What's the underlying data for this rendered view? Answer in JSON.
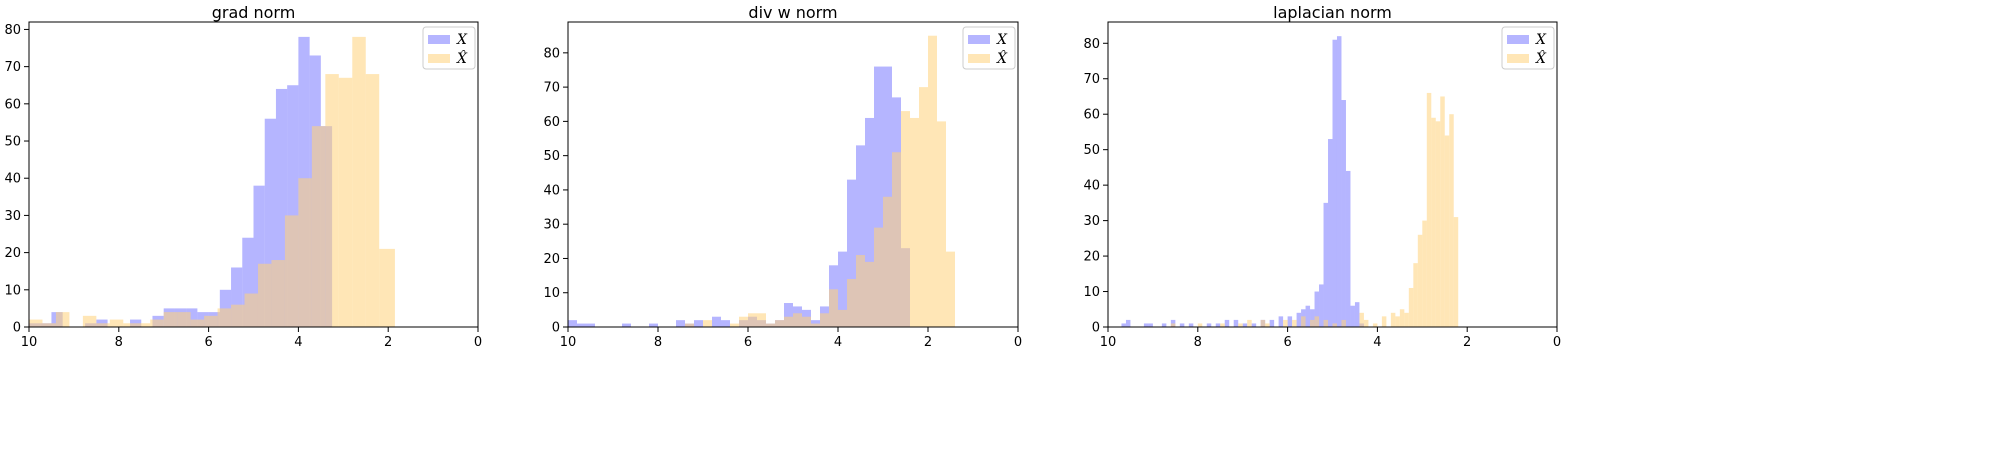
{
  "chart_data": [
    {
      "type": "histogram",
      "title": "grad norm",
      "xlim": [
        10,
        0
      ],
      "ylim": [
        0,
        82
      ],
      "xticks": [
        10,
        8,
        6,
        4,
        2,
        0
      ],
      "yticks": [
        0,
        10,
        20,
        30,
        40,
        50,
        60,
        70,
        80
      ],
      "legend": {
        "position": "top-right",
        "entries": [
          "X",
          "X̂"
        ]
      },
      "grid": false,
      "series": [
        {
          "name": "X",
          "color": "#6b6bff",
          "bins": [
            [
              10.0,
              9.75,
              1
            ],
            [
              9.75,
              9.5,
              1
            ],
            [
              9.5,
              9.25,
              4
            ],
            [
              8.75,
              8.5,
              1
            ],
            [
              8.5,
              8.25,
              2
            ],
            [
              7.75,
              7.5,
              2
            ],
            [
              7.25,
              7.0,
              3
            ],
            [
              7.0,
              6.75,
              5
            ],
            [
              6.75,
              6.5,
              5
            ],
            [
              6.5,
              6.25,
              5
            ],
            [
              6.25,
              6.0,
              4
            ],
            [
              6.0,
              5.75,
              4
            ],
            [
              5.75,
              5.5,
              10
            ],
            [
              5.5,
              5.25,
              16
            ],
            [
              5.25,
              5.0,
              24
            ],
            [
              5.0,
              4.75,
              38
            ],
            [
              4.75,
              4.5,
              56
            ],
            [
              4.5,
              4.25,
              64
            ],
            [
              4.25,
              4.0,
              65
            ],
            [
              4.0,
              3.75,
              78
            ],
            [
              3.75,
              3.5,
              73
            ],
            [
              3.5,
              3.25,
              54
            ]
          ]
        },
        {
          "name": "X̂",
          "color": "#ffd27a",
          "bins": [
            [
              10.0,
              9.7,
              2
            ],
            [
              9.7,
              9.4,
              1
            ],
            [
              9.4,
              9.1,
              4
            ],
            [
              8.8,
              8.5,
              3
            ],
            [
              8.5,
              8.2,
              1
            ],
            [
              8.2,
              7.9,
              2
            ],
            [
              7.9,
              7.6,
              1
            ],
            [
              7.6,
              7.3,
              1
            ],
            [
              7.3,
              7.0,
              2
            ],
            [
              7.0,
              6.7,
              4
            ],
            [
              6.7,
              6.4,
              4
            ],
            [
              6.4,
              6.1,
              2
            ],
            [
              6.1,
              5.8,
              3
            ],
            [
              5.8,
              5.5,
              5
            ],
            [
              5.5,
              5.2,
              6
            ],
            [
              5.2,
              4.9,
              9
            ],
            [
              4.9,
              4.6,
              17
            ],
            [
              4.6,
              4.3,
              18
            ],
            [
              4.3,
              4.0,
              30
            ],
            [
              4.0,
              3.7,
              40
            ],
            [
              3.7,
              3.4,
              54
            ],
            [
              3.4,
              3.1,
              68
            ],
            [
              3.1,
              2.8,
              67
            ],
            [
              2.8,
              2.5,
              78
            ],
            [
              2.5,
              2.2,
              68
            ],
            [
              2.2,
              1.85,
              21
            ]
          ]
        }
      ]
    },
    {
      "type": "histogram",
      "title": "div w norm",
      "xlim": [
        10,
        0
      ],
      "ylim": [
        0,
        89
      ],
      "xticks": [
        10,
        8,
        6,
        4,
        2,
        0
      ],
      "yticks": [
        0,
        10,
        20,
        30,
        40,
        50,
        60,
        70,
        80
      ],
      "legend": {
        "position": "top-right",
        "entries": [
          "X",
          "X̂"
        ]
      },
      "grid": false,
      "series": [
        {
          "name": "X",
          "color": "#6b6bff",
          "bins": [
            [
              10.0,
              9.8,
              2
            ],
            [
              9.8,
              9.6,
              1
            ],
            [
              9.6,
              9.4,
              1
            ],
            [
              8.8,
              8.6,
              1
            ],
            [
              8.2,
              8.0,
              1
            ],
            [
              7.6,
              7.4,
              2
            ],
            [
              7.4,
              7.2,
              1
            ],
            [
              7.2,
              7.0,
              2
            ],
            [
              6.8,
              6.6,
              3
            ],
            [
              6.6,
              6.4,
              2
            ],
            [
              6.2,
              6.0,
              2
            ],
            [
              6.0,
              5.8,
              3
            ],
            [
              5.8,
              5.6,
              2
            ],
            [
              5.6,
              5.4,
              1
            ],
            [
              5.4,
              5.2,
              2
            ],
            [
              5.2,
              5.0,
              7
            ],
            [
              5.0,
              4.8,
              6
            ],
            [
              4.8,
              4.6,
              5
            ],
            [
              4.6,
              4.4,
              2
            ],
            [
              4.4,
              4.2,
              6
            ],
            [
              4.2,
              4.0,
              18
            ],
            [
              4.0,
              3.8,
              22
            ],
            [
              3.8,
              3.6,
              43
            ],
            [
              3.6,
              3.4,
              53
            ],
            [
              3.4,
              3.2,
              61
            ],
            [
              3.2,
              3.0,
              76
            ],
            [
              3.0,
              2.8,
              76
            ],
            [
              2.8,
              2.6,
              67
            ],
            [
              2.6,
              2.4,
              23
            ]
          ]
        },
        {
          "name": "X̂",
          "color": "#ffd27a",
          "bins": [
            [
              7.4,
              7.2,
              1
            ],
            [
              7.0,
              6.8,
              2
            ],
            [
              6.4,
              6.2,
              1
            ],
            [
              6.2,
              6.0,
              3
            ],
            [
              6.0,
              5.8,
              4
            ],
            [
              5.8,
              5.6,
              4
            ],
            [
              5.6,
              5.4,
              1
            ],
            [
              5.4,
              5.2,
              2
            ],
            [
              5.2,
              5.0,
              3
            ],
            [
              5.0,
              4.8,
              4
            ],
            [
              4.8,
              4.6,
              3
            ],
            [
              4.6,
              4.4,
              1
            ],
            [
              4.4,
              4.2,
              4
            ],
            [
              4.2,
              4.0,
              11
            ],
            [
              4.0,
              3.8,
              5
            ],
            [
              3.8,
              3.6,
              14
            ],
            [
              3.6,
              3.4,
              21
            ],
            [
              3.4,
              3.2,
              19
            ],
            [
              3.2,
              3.0,
              29
            ],
            [
              3.0,
              2.8,
              38
            ],
            [
              2.8,
              2.6,
              51
            ],
            [
              2.6,
              2.4,
              63
            ],
            [
              2.4,
              2.2,
              61
            ],
            [
              2.2,
              2.0,
              70
            ],
            [
              2.0,
              1.8,
              85
            ],
            [
              1.8,
              1.6,
              60
            ],
            [
              1.6,
              1.4,
              22
            ]
          ]
        }
      ]
    },
    {
      "type": "histogram",
      "title": "laplacian norm",
      "xlim": [
        10,
        0
      ],
      "ylim": [
        0,
        86
      ],
      "xticks": [
        10,
        8,
        6,
        4,
        2,
        0
      ],
      "yticks": [
        0,
        10,
        20,
        30,
        40,
        50,
        60,
        70,
        80
      ],
      "legend": {
        "position": "top-right",
        "entries": [
          "X",
          "X̂"
        ]
      },
      "grid": false,
      "series": [
        {
          "name": "X",
          "color": "#6b6bff",
          "bins": [
            [
              9.7,
              9.6,
              1
            ],
            [
              9.6,
              9.5,
              2
            ],
            [
              9.2,
              9.1,
              1
            ],
            [
              9.1,
              9.0,
              1
            ],
            [
              8.8,
              8.7,
              1
            ],
            [
              8.6,
              8.5,
              2
            ],
            [
              8.4,
              8.3,
              1
            ],
            [
              8.2,
              8.1,
              1
            ],
            [
              7.8,
              7.7,
              1
            ],
            [
              7.6,
              7.5,
              1
            ],
            [
              7.4,
              7.3,
              2
            ],
            [
              7.2,
              7.1,
              2
            ],
            [
              7.0,
              6.9,
              1
            ],
            [
              6.8,
              6.7,
              1
            ],
            [
              6.6,
              6.5,
              2
            ],
            [
              6.4,
              6.3,
              2
            ],
            [
              6.2,
              6.1,
              3
            ],
            [
              6.0,
              5.9,
              3
            ],
            [
              5.8,
              5.7,
              4
            ],
            [
              5.7,
              5.6,
              5
            ],
            [
              5.6,
              5.5,
              6
            ],
            [
              5.5,
              5.4,
              5
            ],
            [
              5.4,
              5.3,
              10
            ],
            [
              5.3,
              5.2,
              12
            ],
            [
              5.2,
              5.1,
              35
            ],
            [
              5.1,
              5.0,
              53
            ],
            [
              5.0,
              4.9,
              81
            ],
            [
              4.9,
              4.8,
              82
            ],
            [
              4.8,
              4.7,
              64
            ],
            [
              4.7,
              4.6,
              44
            ],
            [
              4.6,
              4.5,
              6
            ],
            [
              4.5,
              4.4,
              7
            ],
            [
              4.4,
              4.3,
              1
            ]
          ]
        },
        {
          "name": "X̂",
          "color": "#ffd27a",
          "bins": [
            [
              8.6,
              8.5,
              1
            ],
            [
              8.0,
              7.9,
              1
            ],
            [
              7.5,
              7.4,
              1
            ],
            [
              7.1,
              7.0,
              1
            ],
            [
              6.9,
              6.8,
              2
            ],
            [
              6.6,
              6.5,
              2
            ],
            [
              6.5,
              6.4,
              1
            ],
            [
              6.1,
              6.0,
              2
            ],
            [
              5.9,
              5.8,
              2
            ],
            [
              5.7,
              5.6,
              3
            ],
            [
              5.5,
              5.4,
              2
            ],
            [
              5.4,
              5.3,
              3
            ],
            [
              5.2,
              5.1,
              2
            ],
            [
              5.0,
              4.9,
              1
            ],
            [
              4.8,
              4.7,
              2
            ],
            [
              4.4,
              4.3,
              4
            ],
            [
              4.3,
              4.2,
              2
            ],
            [
              4.1,
              4.0,
              1
            ],
            [
              3.9,
              3.8,
              3
            ],
            [
              3.7,
              3.6,
              4
            ],
            [
              3.6,
              3.5,
              3
            ],
            [
              3.5,
              3.4,
              5
            ],
            [
              3.4,
              3.3,
              4
            ],
            [
              3.3,
              3.2,
              11
            ],
            [
              3.2,
              3.1,
              18
            ],
            [
              3.1,
              3.0,
              26
            ],
            [
              3.0,
              2.9,
              30
            ],
            [
              2.9,
              2.8,
              66
            ],
            [
              2.8,
              2.7,
              59
            ],
            [
              2.7,
              2.6,
              58
            ],
            [
              2.6,
              2.5,
              65
            ],
            [
              2.5,
              2.4,
              54
            ],
            [
              2.4,
              2.3,
              60
            ],
            [
              2.3,
              2.2,
              31
            ]
          ]
        }
      ]
    }
  ]
}
